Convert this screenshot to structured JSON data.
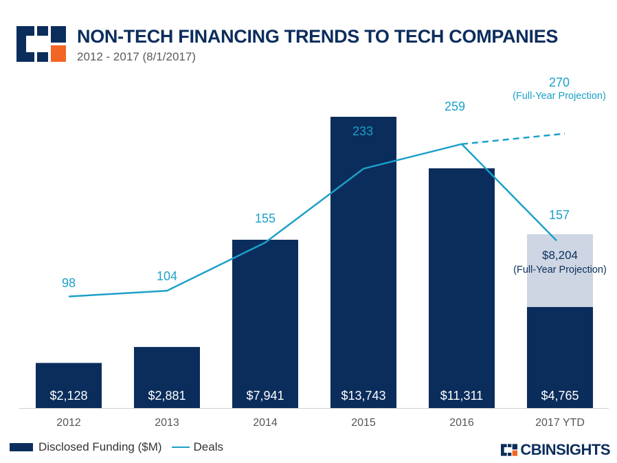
{
  "header": {
    "title": "NON-TECH FINANCING TRENDS TO TECH COMPANIES",
    "subtitle": "2012 - 2017 (8/1/2017)"
  },
  "colors": {
    "bar": "#0b2d5c",
    "projection_bar": "#cdd6e2",
    "line": "#1ba0c8",
    "accent": "#f26522"
  },
  "chart_data": {
    "type": "bar",
    "categories": [
      "2012",
      "2013",
      "2014",
      "2015",
      "2016",
      "2017 YTD"
    ],
    "series": [
      {
        "name": "Disclosed Funding ($M)",
        "type": "bar",
        "values": [
          2128,
          2881,
          7941,
          13743,
          11311,
          4765
        ],
        "labels": [
          "$2,128",
          "$2,881",
          "$7,941",
          "$13,743",
          "$11,311",
          "$4,765"
        ]
      },
      {
        "name": "Deals",
        "type": "line",
        "values": [
          98,
          104,
          155,
          233,
          259,
          157
        ],
        "labels": [
          "98",
          "104",
          "155",
          "233",
          "259",
          "157"
        ]
      }
    ],
    "projections": {
      "funding": {
        "category": "2017 YTD",
        "value": 8204,
        "label": "$8,204",
        "note": "(Full-Year Projection)"
      },
      "deals": {
        "category": "2017 YTD",
        "value": 270,
        "label": "270",
        "note": "(Full-Year Projection)"
      }
    },
    "legend_position": "bottom-left",
    "grid": false
  },
  "legend": {
    "funding_label": "Disclosed Funding ($M)",
    "deals_label": "Deals"
  },
  "brand": {
    "name": "CBINSIGHTS",
    "logo_icon": "cb-insights-logo-icon"
  }
}
